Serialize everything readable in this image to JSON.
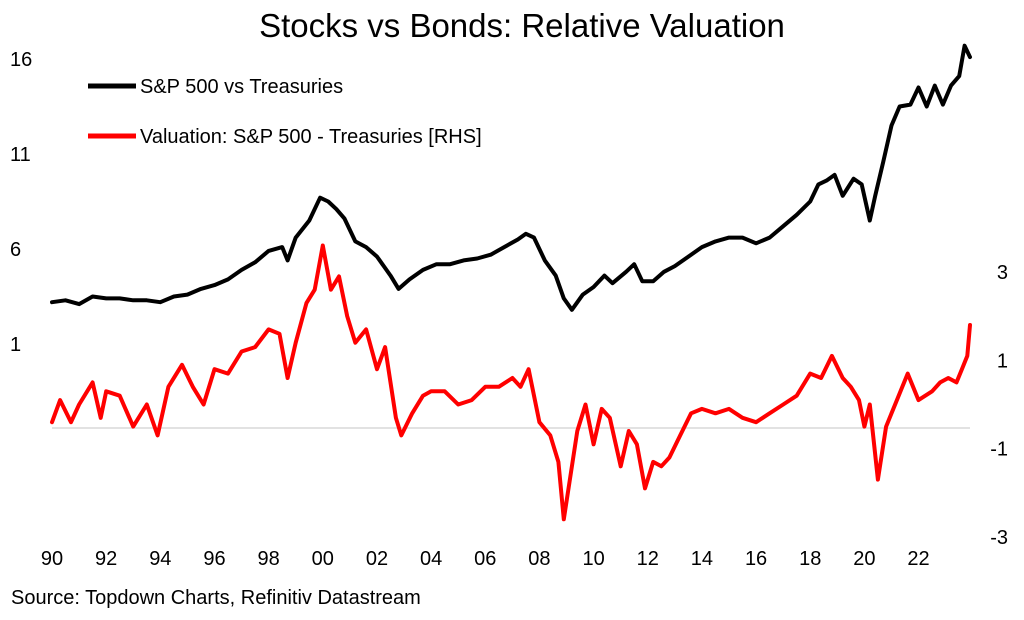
{
  "chart_data": {
    "type": "line",
    "title": "Stocks vs Bonds: Relative Valuation",
    "source": "Source: Topdown Charts, Refinitiv Datastream",
    "x_ticks": [
      "90",
      "92",
      "94",
      "96",
      "98",
      "00",
      "02",
      "04",
      "06",
      "08",
      "10",
      "12",
      "14",
      "16",
      "18",
      "20",
      "22"
    ],
    "x_range": [
      1990,
      2023.9
    ],
    "y_left": {
      "ticks": [
        16,
        11,
        6,
        1
      ],
      "range": [
        1,
        16
      ]
    },
    "y_right": {
      "ticks": [
        3,
        1,
        -1,
        -3
      ],
      "range": [
        -3,
        3
      ]
    },
    "legend_position": "top-left",
    "series": [
      {
        "name": "S&P 500 vs Treasuries",
        "axis": "left",
        "color": "#000000",
        "x": [
          1990.0,
          1990.5,
          1991.0,
          1991.5,
          1992.0,
          1992.5,
          1993.0,
          1993.5,
          1994.0,
          1994.5,
          1995.0,
          1995.5,
          1996.0,
          1996.5,
          1997.0,
          1997.5,
          1998.0,
          1998.5,
          1998.7,
          1999.0,
          1999.5,
          1999.9,
          2000.2,
          2000.5,
          2000.8,
          2001.2,
          2001.6,
          2002.0,
          2002.5,
          2002.8,
          2003.2,
          2003.7,
          2004.2,
          2004.7,
          2005.2,
          2005.7,
          2006.2,
          2006.7,
          2007.2,
          2007.5,
          2007.8,
          2008.2,
          2008.6,
          2008.9,
          2009.2,
          2009.6,
          2010.0,
          2010.4,
          2010.7,
          2011.2,
          2011.5,
          2011.8,
          2012.2,
          2012.6,
          2013.0,
          2013.5,
          2014.0,
          2014.5,
          2015.0,
          2015.5,
          2016.0,
          2016.5,
          2017.0,
          2017.5,
          2018.0,
          2018.3,
          2018.6,
          2018.9,
          2019.2,
          2019.6,
          2019.9,
          2020.2,
          2020.4,
          2020.7,
          2021.0,
          2021.3,
          2021.7,
          2022.0,
          2022.3,
          2022.6,
          2022.9,
          2023.2,
          2023.5,
          2023.7,
          2023.9
        ],
        "values": [
          3.2,
          3.3,
          3.1,
          3.5,
          3.4,
          3.4,
          3.3,
          3.3,
          3.2,
          3.5,
          3.6,
          3.9,
          4.1,
          4.4,
          4.9,
          5.3,
          5.9,
          6.1,
          5.4,
          6.6,
          7.5,
          8.7,
          8.5,
          8.1,
          7.6,
          6.4,
          6.1,
          5.6,
          4.6,
          3.9,
          4.4,
          4.9,
          5.2,
          5.2,
          5.4,
          5.5,
          5.7,
          6.1,
          6.5,
          6.8,
          6.6,
          5.4,
          4.6,
          3.4,
          2.8,
          3.6,
          4.0,
          4.6,
          4.2,
          4.8,
          5.2,
          4.3,
          4.3,
          4.8,
          5.1,
          5.6,
          6.1,
          6.4,
          6.6,
          6.6,
          6.3,
          6.6,
          7.2,
          7.8,
          8.5,
          9.4,
          9.6,
          9.9,
          8.8,
          9.7,
          9.4,
          7.5,
          8.8,
          10.6,
          12.5,
          13.5,
          13.6,
          14.5,
          13.5,
          14.6,
          13.6,
          14.6,
          15.1,
          16.7,
          16.1
        ]
      },
      {
        "name": "Valuation: S&P 500 - Treasuries [RHS]",
        "axis": "right",
        "color": "#ff0000",
        "x": [
          1990.0,
          1990.3,
          1990.7,
          1991.0,
          1991.5,
          1991.8,
          1992.0,
          1992.5,
          1993.0,
          1993.5,
          1993.9,
          1994.3,
          1994.8,
          1995.2,
          1995.6,
          1996.0,
          1996.5,
          1997.0,
          1997.5,
          1998.0,
          1998.4,
          1998.7,
          1999.0,
          1999.4,
          1999.7,
          2000.0,
          2000.3,
          2000.6,
          2000.9,
          2001.2,
          2001.6,
          2002.0,
          2002.3,
          2002.7,
          2002.9,
          2003.3,
          2003.7,
          2004.0,
          2004.5,
          2005.0,
          2005.5,
          2006.0,
          2006.5,
          2007.0,
          2007.3,
          2007.6,
          2008.0,
          2008.4,
          2008.7,
          2008.9,
          2009.1,
          2009.4,
          2009.7,
          2010.0,
          2010.3,
          2010.6,
          2011.0,
          2011.3,
          2011.6,
          2011.9,
          2012.2,
          2012.5,
          2012.8,
          2013.2,
          2013.6,
          2014.0,
          2014.5,
          2015.0,
          2015.5,
          2016.0,
          2016.5,
          2017.0,
          2017.5,
          2018.0,
          2018.4,
          2018.8,
          2019.2,
          2019.5,
          2019.8,
          2020.0,
          2020.2,
          2020.5,
          2020.8,
          2021.2,
          2021.6,
          2022.0,
          2022.5,
          2022.8,
          2023.1,
          2023.4,
          2023.6,
          2023.8,
          2023.9
        ],
        "values": [
          -0.4,
          0.1,
          -0.4,
          0.0,
          0.5,
          -0.3,
          0.3,
          0.2,
          -0.5,
          0.0,
          -0.7,
          0.4,
          0.9,
          0.4,
          0.0,
          0.8,
          0.7,
          1.2,
          1.3,
          1.7,
          1.6,
          0.6,
          1.4,
          2.3,
          2.6,
          3.6,
          2.6,
          2.9,
          2.0,
          1.4,
          1.7,
          0.8,
          1.3,
          -0.3,
          -0.7,
          -0.2,
          0.2,
          0.3,
          0.3,
          0.0,
          0.1,
          0.4,
          0.4,
          0.6,
          0.4,
          0.8,
          -0.4,
          -0.7,
          -1.3,
          -2.6,
          -1.8,
          -0.6,
          0.0,
          -0.9,
          -0.1,
          -0.3,
          -1.4,
          -0.6,
          -0.9,
          -1.9,
          -1.3,
          -1.4,
          -1.2,
          -0.7,
          -0.2,
          -0.1,
          -0.2,
          -0.1,
          -0.3,
          -0.4,
          -0.2,
          0.0,
          0.2,
          0.7,
          0.6,
          1.1,
          0.6,
          0.4,
          0.1,
          -0.5,
          0.0,
          -1.7,
          -0.5,
          0.1,
          0.7,
          0.1,
          0.3,
          0.5,
          0.6,
          0.5,
          0.8,
          1.1,
          1.8
        ]
      }
    ]
  }
}
